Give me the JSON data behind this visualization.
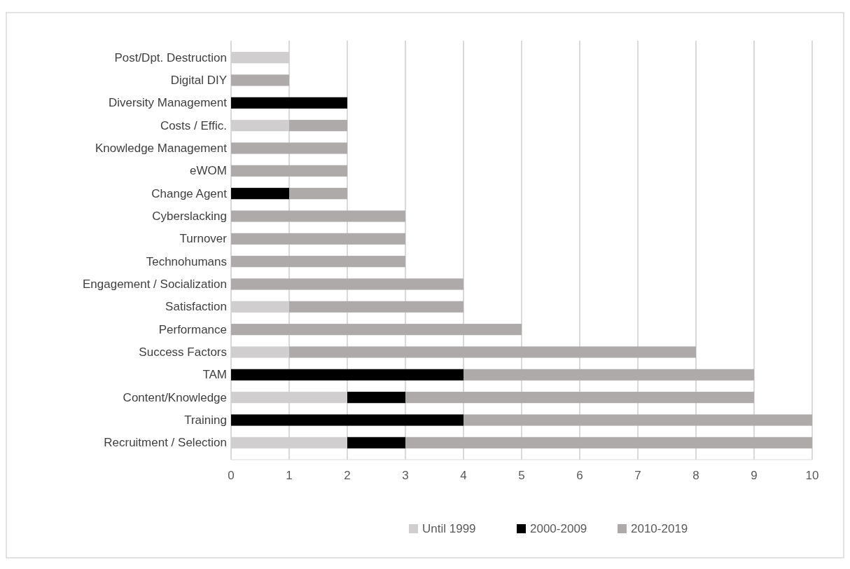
{
  "chart_data": {
    "type": "bar",
    "orientation": "horizontal",
    "stacked": true,
    "categories": [
      "Post/Dpt. Destruction",
      "Digital DIY",
      "Diversity Management",
      "Costs / Effic.",
      "Knowledge Management",
      "eWOM",
      "Change Agent",
      "Cyberslacking",
      "Turnover",
      "Technohumans",
      "Engagement / Socialization",
      "Satisfaction",
      "Performance",
      "Success Factors",
      "TAM",
      "Content/Knowledge",
      "Training",
      "Recruitment / Selection"
    ],
    "series": [
      {
        "name": "Until 1999",
        "color": "#d0cece",
        "values": [
          1,
          0,
          0,
          1,
          0,
          0,
          0,
          0,
          0,
          0,
          0,
          1,
          0,
          1,
          0,
          2,
          0,
          2
        ]
      },
      {
        "name": "2000-2009",
        "color": "#000000",
        "values": [
          0,
          0,
          2,
          0,
          0,
          0,
          1,
          0,
          0,
          0,
          0,
          0,
          0,
          0,
          4,
          1,
          4,
          1
        ]
      },
      {
        "name": "2010-2019",
        "color": "#aeaaaa",
        "values": [
          0,
          1,
          0,
          1,
          2,
          2,
          1,
          3,
          3,
          3,
          4,
          3,
          5,
          7,
          5,
          6,
          6,
          7
        ]
      }
    ],
    "xlim": [
      0,
      10
    ],
    "xticks": [
      0,
      1,
      2,
      3,
      4,
      5,
      6,
      7,
      8,
      9,
      10
    ],
    "grid": "x",
    "legend": "bottom"
  }
}
